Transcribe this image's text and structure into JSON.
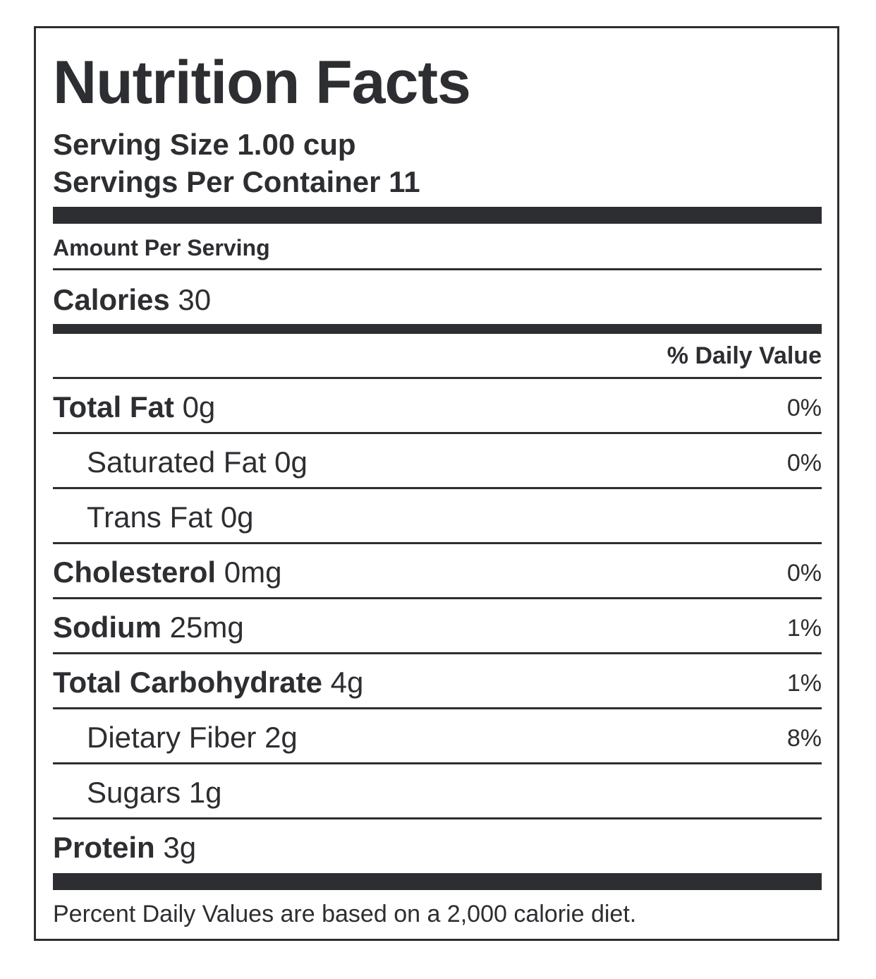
{
  "label": {
    "title": "Nutrition Facts",
    "serving_size": "Serving Size 1.00 cup",
    "servings_per_container": "Servings Per Container 11",
    "amount_per_serving": "Amount Per Serving",
    "calories_label": "Calories",
    "calories_value": "30",
    "daily_value_header": "% Daily Value",
    "nutrients": [
      {
        "label": "Total Fat",
        "amount": "0g",
        "dv": "0%"
      },
      {
        "label": "Saturated Fat",
        "amount": "0g",
        "dv": "0%"
      },
      {
        "label": "Trans Fat",
        "amount": "0g",
        "dv": ""
      },
      {
        "label": "Cholesterol",
        "amount": "0mg",
        "dv": "0%"
      },
      {
        "label": "Sodium",
        "amount": "25mg",
        "dv": "1%"
      },
      {
        "label": "Total Carbohydrate",
        "amount": "4g",
        "dv": "1%"
      },
      {
        "label": "Dietary Fiber",
        "amount": "2g",
        "dv": "8%"
      },
      {
        "label": "Sugars",
        "amount": "1g",
        "dv": ""
      },
      {
        "label": "Protein",
        "amount": "3g",
        "dv": ""
      }
    ],
    "footnote": "Percent Daily Values are based on a 2,000 calorie diet."
  }
}
